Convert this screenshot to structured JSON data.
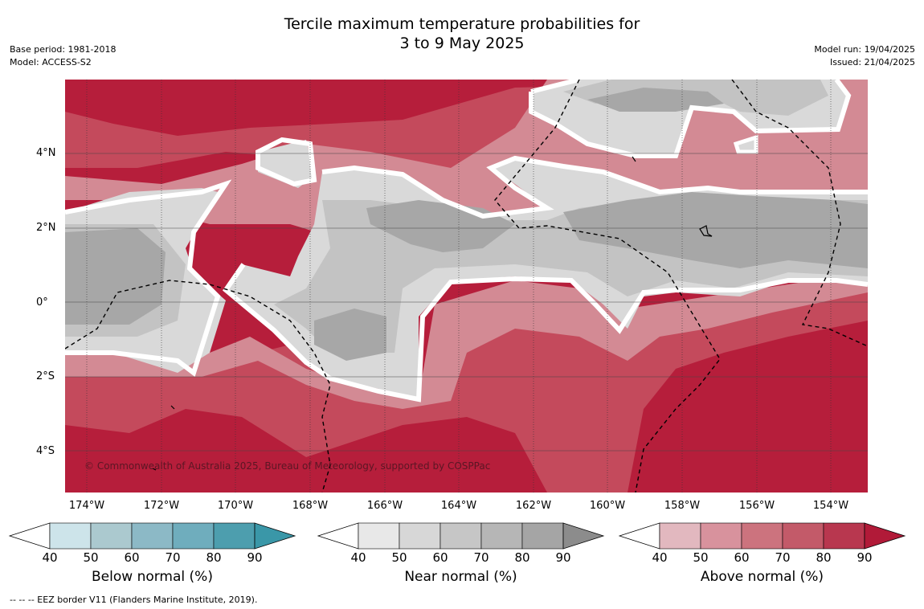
{
  "header": {
    "title_line1": "Tercile maximum temperature probabilities for",
    "title_line2": "3 to 9 May 2025",
    "base_period": "Base period: 1981-2018",
    "model": "Model: ACCESS-S2",
    "model_run": "Model run: 19/04/2025",
    "issued": "Issued: 21/04/2025"
  },
  "map": {
    "copyright": "© Commonwealth of Australia 2025, Bureau of Meteorology, supported by COSPPac",
    "latitude_labels": [
      "4°N",
      "2°N",
      "0°",
      "2°S",
      "4°S"
    ],
    "longitude_labels": [
      "174°W",
      "172°W",
      "170°W",
      "168°W",
      "166°W",
      "164°W",
      "162°W",
      "160°W",
      "158°W",
      "156°W",
      "154°W"
    ],
    "colors": {
      "above_strong": "#b61e3b",
      "above_mid": "#c44a5c",
      "above_light": "#d38a94",
      "near_light": "#d9d9d9",
      "near_mid": "#c3c3c3",
      "near_dark": "#a7a7a7",
      "boundary": "#ffffff"
    }
  },
  "legends": {
    "below": {
      "title": "Below normal (%)",
      "ticks": [
        "40",
        "50",
        "60",
        "70",
        "80",
        "90"
      ],
      "colors": [
        "#cde4ea",
        "#abc9cf",
        "#8cb9c6",
        "#6fadbd",
        "#4d9eae",
        "#3a97a8"
      ]
    },
    "near": {
      "title": "Near normal (%)",
      "ticks": [
        "40",
        "50",
        "60",
        "70",
        "80",
        "90"
      ],
      "colors": [
        "#e8e8e8",
        "#d7d7d7",
        "#c6c6c6",
        "#b6b6b6",
        "#a5a5a5",
        "#8c8c8c"
      ]
    },
    "above": {
      "title": "Above normal (%)",
      "ticks": [
        "40",
        "50",
        "60",
        "70",
        "80",
        "90"
      ],
      "colors": [
        "#e2b8bf",
        "#d8929d",
        "#cc737e",
        "#c35a69",
        "#b8374f",
        "#b11a38"
      ]
    }
  },
  "footer": {
    "eez_note": "--  --  -- EEZ border V11 (Flanders Marine Institute, 2019)."
  }
}
